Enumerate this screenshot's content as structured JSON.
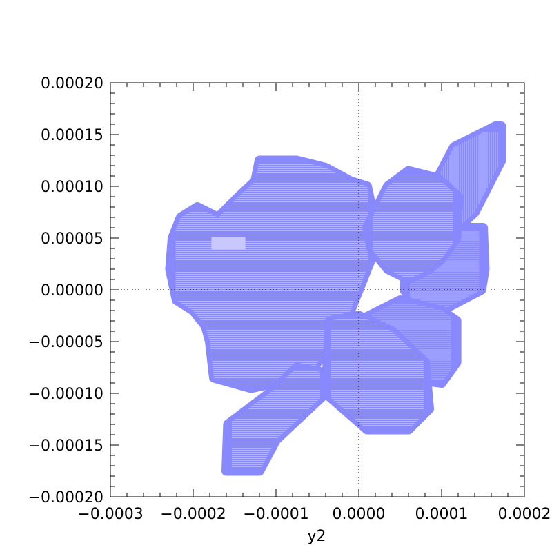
{
  "chart_data": {
    "type": "area",
    "title": "",
    "xlabel": "y2",
    "ylabel": "",
    "xlim": [
      -0.0003,
      0.0002
    ],
    "ylim": [
      -0.0002,
      0.0002
    ],
    "xticks": [
      -0.0003,
      -0.0002,
      -0.0001,
      0.0,
      0.0001,
      0.0002
    ],
    "xtick_labels": [
      "−0.0003",
      "−0.0002",
      "−0.0001",
      "0.0000",
      "0.0001",
      "0.0002"
    ],
    "yticks": [
      -0.0002,
      -0.00015,
      -0.0001,
      -5e-05,
      0.0,
      5e-05,
      0.0001,
      0.00015,
      0.0002
    ],
    "ytick_labels": [
      "−0.00020",
      "−0.00015",
      "−0.00010",
      "−0.00005",
      "0.00000",
      "0.00005",
      "0.00010",
      "0.00015",
      "0.00020"
    ],
    "zero_lines": true,
    "grid": false,
    "colors": {
      "fill": "#8888ff",
      "highlight": "#c8c8ff",
      "hatch": "#ffffff"
    },
    "regions": [
      {
        "name": "main-blob",
        "x": [
          -0.000228,
          -0.000225,
          -0.000215,
          -0.000195,
          -0.00017,
          -0.000145,
          -0.000125,
          -0.00012,
          -7.5e-05,
          -4e-05,
          -1e-05,
          1e-05,
          1.8e-05,
          1.5e-05,
          -5e-06,
          -1.5e-05,
          -3e-05,
          -5e-05,
          -7e-05,
          -9e-05,
          -0.00013,
          -0.000175,
          -0.00018,
          -0.000185,
          -0.0002,
          -0.00022
        ],
        "y": [
          2e-05,
          5e-05,
          7e-05,
          8e-05,
          7e-05,
          9e-05,
          0.000105,
          0.000125,
          0.000125,
          0.000118,
          0.000105,
          0.0001,
          7e-05,
          3e-05,
          -1e-05,
          -3e-05,
          -5e-05,
          -7e-05,
          -0.0001,
          -8.8e-05,
          -9.5e-05,
          -8.5e-05,
          -5e-05,
          -3.5e-05,
          -2e-05,
          -1e-05
        ]
      },
      {
        "name": "upper-right-band",
        "x": [
          5.5e-05,
          7.5e-05,
          9e-05,
          0.000115,
          0.000165,
          0.000172,
          0.000172,
          0.00014,
          0.0001,
          6e-05
        ],
        "y": [
          4e-05,
          9e-05,
          0.0001,
          0.000138,
          0.000158,
          0.000158,
          0.000125,
          7.5e-05,
          4.5e-05,
          2.5e-05
        ]
      },
      {
        "name": "right-band",
        "x": [
          6e-05,
          9.5e-05,
          0.00015,
          0.000152,
          0.000148,
          0.0001,
          7.5e-05,
          5.5e-05
        ],
        "y": [
          5.5e-05,
          6e-05,
          6e-05,
          2e-05,
          0.0,
          -2e-05,
          -2.5e-05,
          0.0
        ]
      },
      {
        "name": "center-right-lobe",
        "x": [
          1e-05,
          3.5e-05,
          6e-05,
          9.5e-05,
          0.00012,
          0.000118,
          0.0001,
          8.5e-05,
          6e-05,
          3.5e-05,
          1.5e-05
        ],
        "y": [
          6e-05,
          0.0001,
          0.000115,
          0.000108,
          9e-05,
          5e-05,
          3e-05,
          2e-05,
          1e-05,
          2e-05,
          4e-05
        ]
      },
      {
        "name": "lower-right-band",
        "x": [
          0.0,
          5e-05,
          0.0001,
          0.000118,
          0.000118,
          0.0001,
          5e-05,
          1e-05
        ],
        "y": [
          -3e-05,
          -1e-05,
          -2e-05,
          -3e-05,
          -7e-05,
          -9e-05,
          -8.5e-05,
          -7e-05
        ]
      },
      {
        "name": "bottom-center-band",
        "x": [
          -3.5e-05,
          0.0,
          4e-05,
          8e-05,
          8.5e-05,
          6e-05,
          1e-05,
          -4e-05
        ],
        "y": [
          -3e-05,
          -2.5e-05,
          -4e-05,
          -7e-05,
          -0.000115,
          -0.000135,
          -0.000135,
          -0.0001
        ]
      },
      {
        "name": "bottom-left-band",
        "x": [
          -0.000158,
          -0.0001,
          -7.5e-05,
          -4.2e-05,
          -4e-05,
          -0.0001,
          -0.00012,
          -0.00016
        ],
        "y": [
          -0.00013,
          -9.5e-05,
          -7.5e-05,
          -8e-05,
          -0.0001,
          -0.000145,
          -0.000175,
          -0.000175
        ]
      }
    ],
    "highlight_box": {
      "x": [
        -0.000178,
        -0.000137
      ],
      "y": [
        3.9e-05,
        5.1e-05
      ]
    }
  }
}
